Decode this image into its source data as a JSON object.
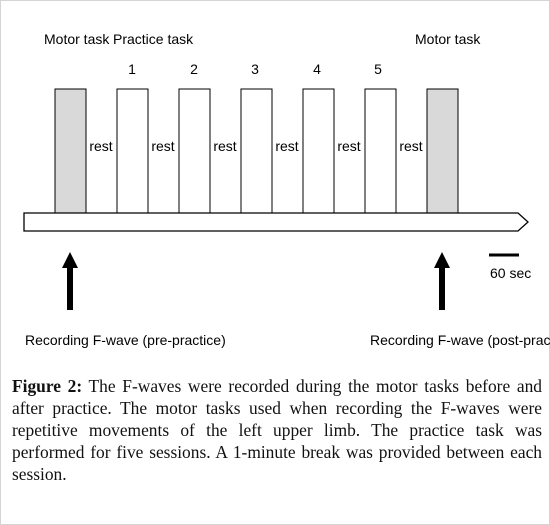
{
  "diagram": {
    "labels": {
      "motor_task_pre": "Motor task",
      "practice_task": "Practice task",
      "motor_task_post": "Motor task",
      "scale_bar": "60 sec",
      "recording_pre": "Recording F-wave (pre-practice)",
      "recording_post": "Recording F-wave (post-practice)"
    },
    "sessions": [
      "1",
      "2",
      "3",
      "4",
      "5"
    ],
    "rest_labels": [
      "rest",
      "rest",
      "rest",
      "rest",
      "rest",
      "rest"
    ],
    "colors": {
      "motor_block": "#d9d9d9",
      "practice_block": "#ffffff",
      "outline": "#000000"
    }
  },
  "caption": {
    "label": "Figure 2:",
    "text": "The F-waves were recorded during the motor tasks before and after practice. The motor tasks used when recording the F-waves were repetitive movements of the left upper limb. The practice task was performed for five sessions. A 1-minute break was provided between each session."
  }
}
